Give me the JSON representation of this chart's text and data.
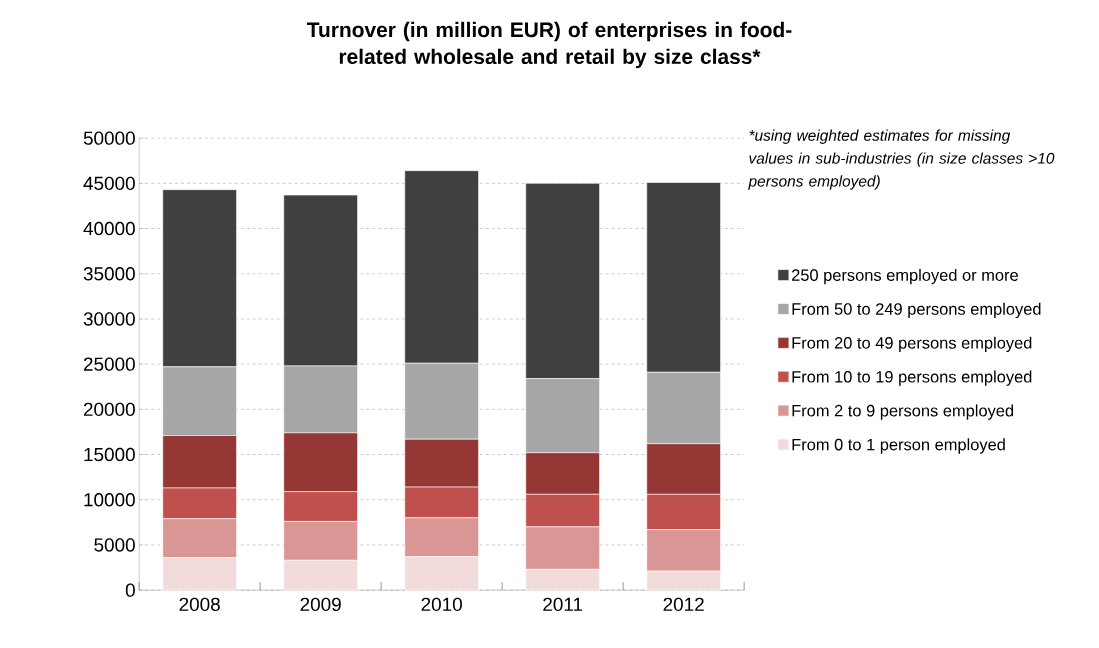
{
  "chart_data": {
    "type": "bar",
    "title": "Turnover (in million EUR) of enterprises in food-related wholesale and retail by size class*",
    "categories": [
      "2008",
      "2009",
      "2010",
      "2011",
      "2012"
    ],
    "stacked": true,
    "series": [
      {
        "name": "From 0 to 1 person employed",
        "color": "#f2dcdb",
        "values": [
          3600,
          3300,
          3700,
          2300,
          2100
        ]
      },
      {
        "name": "From 2 to 9 persons employed",
        "color": "#d99694",
        "values": [
          4300,
          4300,
          4300,
          4700,
          4600
        ]
      },
      {
        "name": "From 10 to 19 persons employed",
        "color": "#c0504d",
        "values": [
          3400,
          3300,
          3400,
          3600,
          3900
        ]
      },
      {
        "name": "From 20 to 49 persons employed",
        "color": "#953735",
        "values": [
          5800,
          6500,
          5300,
          4600,
          5600
        ]
      },
      {
        "name": "From 50 to 249 persons employed",
        "color": "#a6a6a6",
        "values": [
          7600,
          7400,
          8400,
          8200,
          7900
        ]
      },
      {
        "name": "250 persons employed or more",
        "color": "#404040",
        "values": [
          19600,
          18900,
          21300,
          21600,
          21000
        ]
      }
    ],
    "ylim": [
      0,
      50000
    ],
    "yticks": [
      0,
      5000,
      10000,
      15000,
      20000,
      25000,
      30000,
      35000,
      40000,
      45000,
      50000
    ],
    "grid": "y",
    "legend": "right",
    "annotations": [
      "*using weighted estimates for missing values in  sub-industries (in size classes  >10 persons employed)"
    ]
  }
}
